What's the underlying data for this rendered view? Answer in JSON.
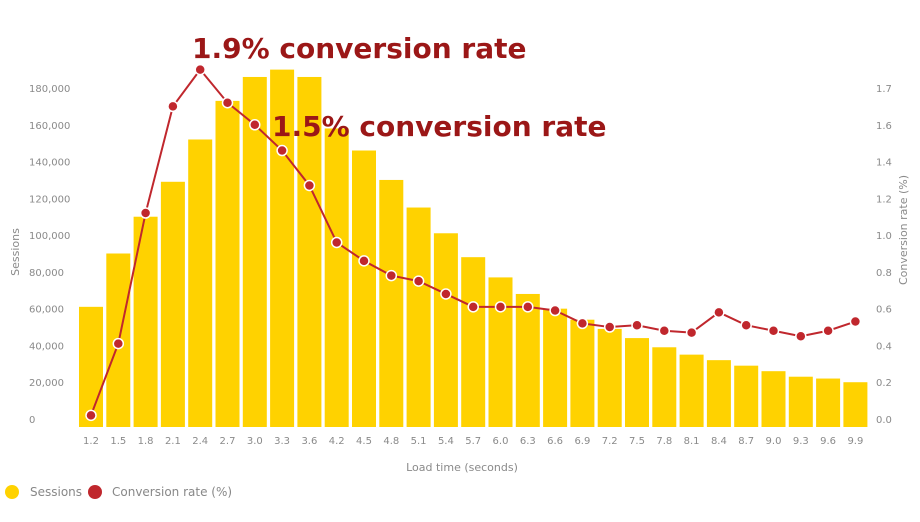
{
  "chart_data": {
    "type": "bar",
    "combo": "bar-line dual axis",
    "xlabel": "Load time (seconds)",
    "ylabel": "Sessions",
    "y2label": "Conversion rate (%)",
    "categories": [
      "1.2",
      "1.5",
      "1.8",
      "2.1",
      "2.4",
      "2.7",
      "3.0",
      "3.3",
      "3.6",
      "4.2",
      "4.5",
      "4.8",
      "5.1",
      "5.4",
      "5.7",
      "6.0",
      "6.3",
      "6.6",
      "6.9",
      "7.2",
      "7.5",
      "7.8",
      "8.1",
      "8.4",
      "8.7",
      "9.0",
      "9.3",
      "9.6",
      "9.9"
    ],
    "y_ticks": [
      "0",
      "20,000",
      "40,000",
      "60,000",
      "80,000",
      "100,000",
      "120,000",
      "140,000",
      "160,000",
      "180,000"
    ],
    "y2_ticks": [
      "0.0",
      "0.2",
      "0.4",
      "0.6",
      "0.8",
      "1.0",
      "1.2",
      "1.4",
      "1.6",
      "1.7"
    ],
    "ylim": [
      0,
      180000
    ],
    "y2lim": [
      0,
      1.8
    ],
    "grid": false,
    "legend_position": "bottom-left",
    "series": [
      {
        "name": "Sessions",
        "type": "bar",
        "axis": "left",
        "color": "#FFD200",
        "values": [
          61000,
          90000,
          110000,
          129000,
          152000,
          173000,
          186000,
          190000,
          186000,
          158000,
          146000,
          130000,
          115000,
          101000,
          88000,
          77000,
          68000,
          60000,
          54000,
          49000,
          44000,
          39000,
          35000,
          32000,
          29000,
          26000,
          23000,
          22000,
          20000
        ]
      },
      {
        "name": "Conversion rate (%)",
        "type": "line",
        "axis": "right",
        "color": "#C0272D",
        "values": [
          0.02,
          0.41,
          1.12,
          1.7,
          1.9,
          1.72,
          1.6,
          1.46,
          1.27,
          0.96,
          0.86,
          0.78,
          0.75,
          0.68,
          0.61,
          0.61,
          0.61,
          0.59,
          0.52,
          0.5,
          0.51,
          0.48,
          0.47,
          0.58,
          0.51,
          0.48,
          0.45,
          0.48,
          0.53
        ]
      }
    ],
    "annotations": [
      {
        "text": "1.9% conversion rate",
        "at": "2.4"
      },
      {
        "text": "1.5% conversion rate",
        "at": "3.3"
      }
    ]
  }
}
